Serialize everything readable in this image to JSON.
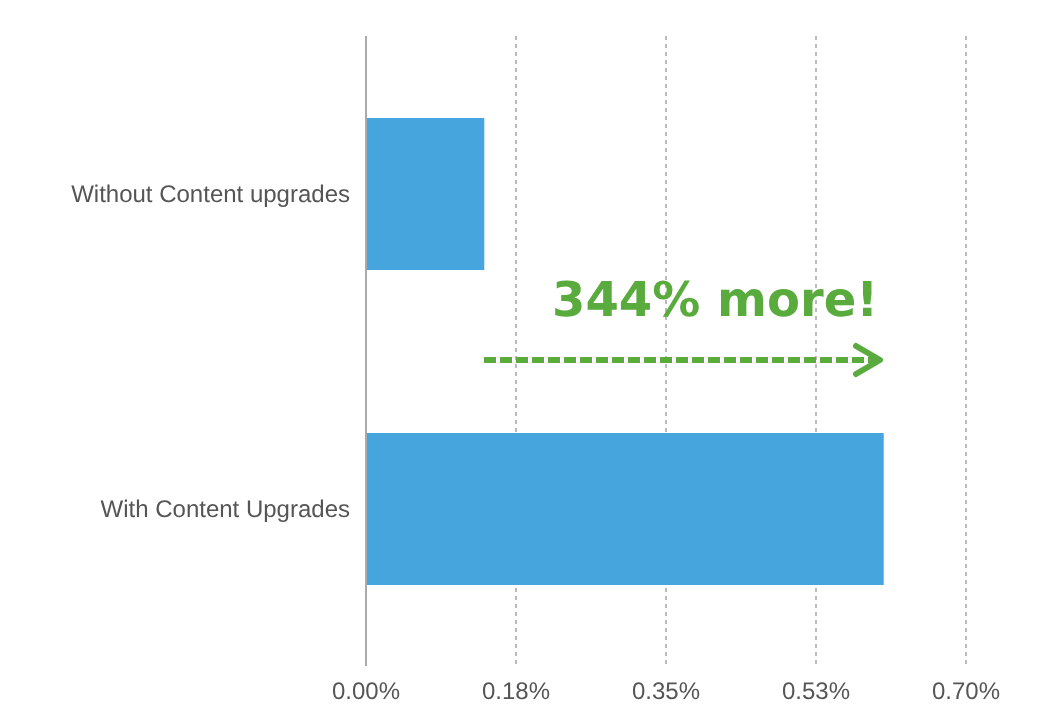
{
  "chart_data": {
    "type": "bar",
    "orientation": "horizontal",
    "categories": [
      "Without Content upgrades",
      "With Content Upgrades"
    ],
    "values": [
      0.138,
      0.604
    ],
    "color": "#45a5dc",
    "xlim": [
      0,
      0.7
    ],
    "xticks": [
      {
        "value": 0,
        "label": "0.00%"
      },
      {
        "value": 0.175,
        "label": "0.18%"
      },
      {
        "value": 0.35,
        "label": "0.35%"
      },
      {
        "value": 0.525,
        "label": "0.53%"
      },
      {
        "value": 0.7,
        "label": "0.70%"
      }
    ],
    "grid": "x",
    "annotations": [
      "344% more!"
    ]
  }
}
